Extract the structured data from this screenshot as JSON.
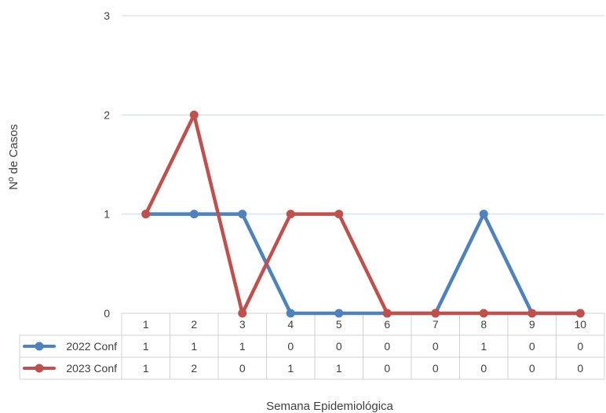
{
  "chart_data": {
    "type": "line",
    "title": "",
    "xlabel": "Semana Epidemiológica",
    "ylabel": "Nº de Casos",
    "categories": [
      "1",
      "2",
      "3",
      "4",
      "5",
      "6",
      "7",
      "8",
      "9",
      "10"
    ],
    "ylim": [
      0,
      3
    ],
    "yticks": [
      "0",
      "1",
      "2",
      "3"
    ],
    "grid": true,
    "legend": "data-table-left",
    "series": [
      {
        "name": "2022 Conf",
        "color": "#4F81BD",
        "values": [
          1,
          1,
          1,
          0,
          0,
          0,
          0,
          1,
          0,
          0
        ]
      },
      {
        "name": "2023 Conf",
        "color": "#C0504D",
        "values": [
          1,
          2,
          0,
          1,
          1,
          0,
          0,
          0,
          0,
          0
        ]
      }
    ]
  }
}
